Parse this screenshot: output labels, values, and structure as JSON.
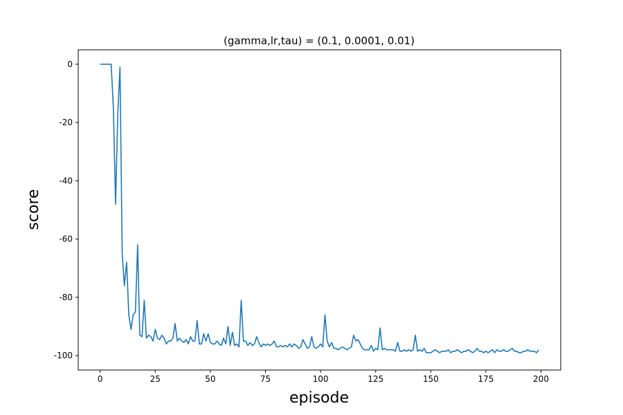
{
  "chart_data": {
    "type": "line",
    "title": "(gamma,lr,tau) = (0.1, 0.0001, 0.01)",
    "xlabel": "episode",
    "ylabel": "score",
    "x": [
      0,
      1,
      2,
      3,
      4,
      5,
      6,
      7,
      8,
      9,
      10,
      11,
      12,
      13,
      14,
      15,
      16,
      17,
      18,
      19,
      20,
      21,
      22,
      23,
      24,
      25,
      26,
      27,
      28,
      29,
      30,
      31,
      32,
      33,
      34,
      35,
      36,
      37,
      38,
      39,
      40,
      41,
      42,
      43,
      44,
      45,
      46,
      47,
      48,
      49,
      50,
      51,
      52,
      53,
      54,
      55,
      56,
      57,
      58,
      59,
      60,
      61,
      62,
      63,
      64,
      65,
      66,
      67,
      68,
      69,
      70,
      71,
      72,
      73,
      74,
      75,
      76,
      77,
      78,
      79,
      80,
      81,
      82,
      83,
      84,
      85,
      86,
      87,
      88,
      89,
      90,
      91,
      92,
      93,
      94,
      95,
      96,
      97,
      98,
      99,
      100,
      101,
      102,
      103,
      104,
      105,
      106,
      107,
      108,
      109,
      110,
      111,
      112,
      113,
      114,
      115,
      116,
      117,
      118,
      119,
      120,
      121,
      122,
      123,
      124,
      125,
      126,
      127,
      128,
      129,
      130,
      131,
      132,
      133,
      134,
      135,
      136,
      137,
      138,
      139,
      140,
      141,
      142,
      143,
      144,
      145,
      146,
      147,
      148,
      149,
      150,
      151,
      152,
      153,
      154,
      155,
      156,
      157,
      158,
      159,
      160,
      161,
      162,
      163,
      164,
      165,
      166,
      167,
      168,
      169,
      170,
      171,
      172,
      173,
      174,
      175,
      176,
      177,
      178,
      179,
      180,
      181,
      182,
      183,
      184,
      185,
      186,
      187,
      188,
      189,
      190,
      191,
      192,
      193,
      194,
      195,
      196,
      197,
      198,
      199
    ],
    "series": [
      {
        "color": "#1f77b4",
        "values": [
          0,
          0,
          0,
          0,
          0,
          0,
          -15,
          -48,
          -17,
          -1,
          -65,
          -76,
          -68,
          -86,
          -91,
          -86,
          -85,
          -62,
          -93,
          -93.5,
          -81,
          -94,
          -93,
          -93.5,
          -95,
          -91,
          -94,
          -94.5,
          -93,
          -94,
          -96,
          -95,
          -95,
          -94,
          -89,
          -95,
          -94,
          -95,
          -95.5,
          -94.5,
          -96,
          -93.5,
          -95,
          -95,
          -88,
          -96,
          -96,
          -92.5,
          -95,
          -92.5,
          -95.5,
          -96,
          -96,
          -95,
          -96,
          -96.5,
          -94,
          -96,
          -90,
          -96.5,
          -92,
          -96.5,
          -96,
          -97,
          -81,
          -95,
          -95,
          -96.5,
          -95.5,
          -96.5,
          -96,
          -93.5,
          -95.5,
          -97,
          -96,
          -96.5,
          -96,
          -96.5,
          -96,
          -95,
          -97,
          -97,
          -96.5,
          -97,
          -96.5,
          -97,
          -96,
          -97,
          -96,
          -96.5,
          -97.5,
          -97,
          -94.5,
          -96,
          -97.5,
          -97,
          -93.5,
          -97,
          -97.5,
          -97,
          -96,
          -97,
          -86,
          -95,
          -97,
          -95.5,
          -97.5,
          -97.5,
          -98,
          -97.5,
          -97,
          -97.5,
          -98,
          -97.5,
          -97,
          -93,
          -95,
          -94.5,
          -96,
          -97.5,
          -98,
          -98,
          -98,
          -96.5,
          -98.5,
          -97.5,
          -98,
          -90.5,
          -98,
          -97.5,
          -98,
          -98,
          -98,
          -98,
          -98.5,
          -95.5,
          -98.5,
          -98.5,
          -98,
          -98.5,
          -98,
          -98.5,
          -98,
          -93,
          -98.5,
          -98,
          -98.5,
          -97.5,
          -99,
          -99,
          -99,
          -98.5,
          -98,
          -98.5,
          -99,
          -98.5,
          -98.5,
          -98.5,
          -98,
          -99,
          -98.5,
          -98.5,
          -98,
          -98.5,
          -99,
          -98.5,
          -98.5,
          -98,
          -98.5,
          -99,
          -98.5,
          -97.5,
          -98.5,
          -98.5,
          -99,
          -98.5,
          -99,
          -98.5,
          -98,
          -99,
          -98,
          -98.5,
          -98.5,
          -98,
          -98.5,
          -98.5,
          -98,
          -97.5,
          -98.5,
          -98.5,
          -99,
          -99,
          -98.5,
          -98.5,
          -98,
          -98.5,
          -98.5,
          -98.5,
          -99,
          -98
        ]
      }
    ],
    "xlim": [
      -9.95,
      208.95
    ],
    "ylim": [
      -104.95,
      4.95
    ],
    "xticks": [
      0,
      25,
      50,
      75,
      100,
      125,
      150,
      175,
      200
    ],
    "yticks": [
      -100,
      -80,
      -60,
      -40,
      -20,
      0
    ]
  }
}
